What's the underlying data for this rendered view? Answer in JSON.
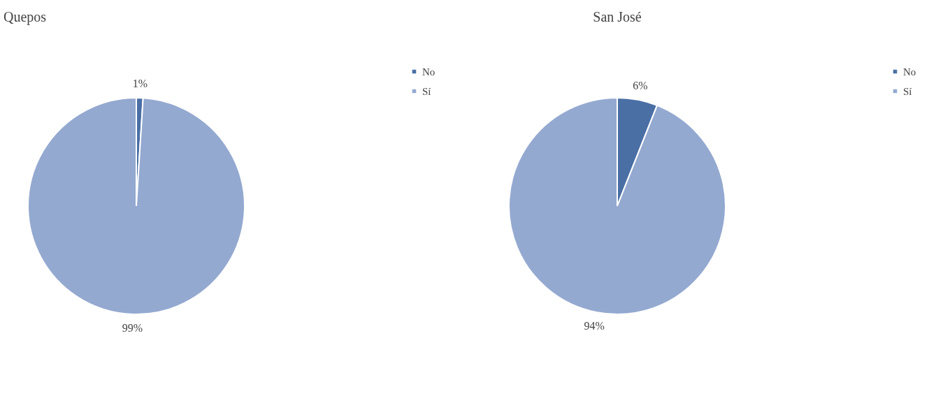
{
  "chart_data": [
    {
      "type": "pie",
      "title": "Quepos",
      "categories": [
        "No",
        "Sí"
      ],
      "values": [
        1,
        99
      ],
      "colors": [
        "#4a6fa5",
        "#94a9d0"
      ],
      "value_labels": [
        "1%",
        "99%"
      ],
      "legend": "right"
    },
    {
      "type": "pie",
      "title": "San José",
      "categories": [
        "No",
        "Sí"
      ],
      "values": [
        6,
        94
      ],
      "colors": [
        "#4a6fa5",
        "#94a9d0"
      ],
      "value_labels": [
        "6%",
        "94%"
      ],
      "legend": "right"
    }
  ]
}
